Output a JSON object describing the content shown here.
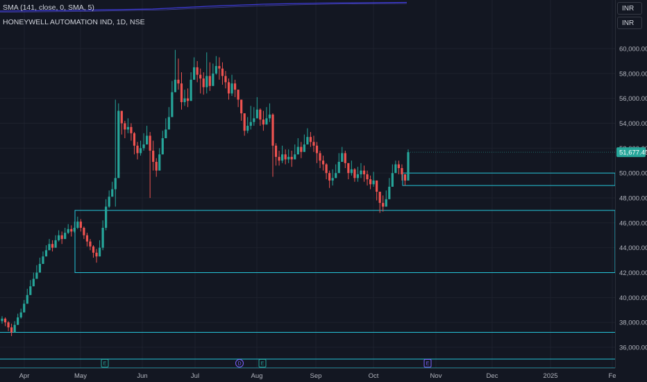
{
  "header": {
    "indicator_label": "SMA (141, close, 0, SMA, 5)",
    "symbol_title": "HONEYWELL AUTOMATION IND, 1D, NSE",
    "currency_top": "INR",
    "currency_bottom": "INR"
  },
  "chart_data": {
    "type": "candlestick",
    "x_labels": [
      "Apr",
      "May",
      "Jun",
      "Jul",
      "Aug",
      "Sep",
      "Oct",
      "Nov",
      "Dec",
      "2025",
      "Fe"
    ],
    "y_ticks": [
      "36,000.00",
      "38,000.00",
      "40,000.00",
      "42,000.00",
      "44,000.00",
      "46,000.00",
      "48,000.00",
      "50,000.00",
      "52,000.00",
      "54,000.00",
      "56,000.00",
      "58,000.00",
      "60,000.00"
    ],
    "ylim": [
      34000,
      61800
    ],
    "last_price": "51,677.45",
    "last_price_value": 51677.45,
    "events": [
      "E",
      "D",
      "E",
      "E"
    ],
    "horizontal_levels": [
      37200,
      42000,
      47000,
      49000,
      50000
    ],
    "colors": {
      "background": "#131722",
      "up": "#26a69a",
      "down": "#ef5350",
      "levels": "#26c6da",
      "sma": "#3d3ad6",
      "price_tag": "#26a69a"
    },
    "closes": [
      38300,
      38000,
      37600,
      37200,
      37800,
      38400,
      38800,
      39500,
      40200,
      40900,
      41500,
      42000,
      42700,
      43300,
      43800,
      44300,
      44000,
      44600,
      45000,
      44700,
      45200,
      45500,
      45300,
      45600,
      46100,
      45600,
      45000,
      44500,
      44100,
      43600,
      43300,
      44000,
      45600,
      47300,
      48100,
      48700,
      49600,
      55000,
      54000,
      53500,
      53700,
      53200,
      52200,
      51600,
      52000,
      52300,
      53000,
      51800,
      50900,
      50200,
      51500,
      52800,
      53500,
      54500,
      56500,
      57500,
      57200,
      55700,
      56000,
      55800,
      57500,
      58500,
      57900,
      57600,
      56900,
      57800,
      57000,
      58000,
      58600,
      58400,
      57800,
      57300,
      56400,
      57200,
      56700,
      55900,
      54800,
      53400,
      53800,
      54100,
      54400,
      55100,
      54300,
      53900,
      54400,
      54700,
      52200,
      51300,
      51000,
      51500,
      51100,
      51300,
      51100,
      51500,
      52100,
      51700,
      52300,
      52900,
      52500,
      52200,
      51600,
      51000,
      50700,
      50000,
      49400,
      49600,
      50000,
      50900,
      51600,
      50800,
      50000,
      50300,
      49600,
      49900,
      50200,
      49900,
      49500,
      49100,
      49400,
      48500,
      47600,
      47300,
      47900,
      48900,
      50000,
      50700,
      50400,
      49900,
      49400,
      51677.45
    ],
    "ranges": [
      [
        38500,
        37900
      ],
      [
        38400,
        37700
      ],
      [
        38100,
        37300
      ],
      [
        37900,
        36900
      ],
      [
        38100,
        37400
      ],
      [
        38700,
        37900
      ],
      [
        39100,
        38300
      ],
      [
        39800,
        38900
      ],
      [
        40700,
        39700
      ],
      [
        41400,
        40400
      ],
      [
        42000,
        41100
      ],
      [
        42600,
        41500
      ],
      [
        43200,
        42100
      ],
      [
        43700,
        42800
      ],
      [
        44200,
        43300
      ],
      [
        44700,
        43900
      ],
      [
        44600,
        43700
      ],
      [
        45000,
        44200
      ],
      [
        45400,
        44500
      ],
      [
        45300,
        44300
      ],
      [
        45600,
        44800
      ],
      [
        45900,
        45100
      ],
      [
        45800,
        44900
      ],
      [
        46100,
        45200
      ],
      [
        46500,
        45500
      ],
      [
        46300,
        45300
      ],
      [
        45700,
        44700
      ],
      [
        45200,
        44100
      ],
      [
        44700,
        43800
      ],
      [
        44200,
        43200
      ],
      [
        43900,
        42800
      ],
      [
        44600,
        43300
      ],
      [
        46200,
        43800
      ],
      [
        47900,
        45400
      ],
      [
        48600,
        47200
      ],
      [
        49300,
        48200
      ],
      [
        55900,
        47300
      ],
      [
        55600,
        53600
      ],
      [
        54700,
        53100
      ],
      [
        54200,
        52800
      ],
      [
        54400,
        53200
      ],
      [
        54000,
        52600
      ],
      [
        53300,
        51500
      ],
      [
        52500,
        51100
      ],
      [
        52600,
        51400
      ],
      [
        53200,
        51800
      ],
      [
        53800,
        52500
      ],
      [
        53300,
        48000
      ],
      [
        52600,
        50200
      ],
      [
        51200,
        49700
      ],
      [
        52000,
        50600
      ],
      [
        53400,
        51900
      ],
      [
        54400,
        52800
      ],
      [
        55300,
        53800
      ],
      [
        57400,
        54900
      ],
      [
        59900,
        56800
      ],
      [
        59200,
        56700
      ],
      [
        58100,
        55100
      ],
      [
        56700,
        55400
      ],
      [
        56800,
        55300
      ],
      [
        58100,
        56400
      ],
      [
        59300,
        57500
      ],
      [
        59000,
        57300
      ],
      [
        58400,
        56400
      ],
      [
        58100,
        56300
      ],
      [
        59700,
        56400
      ],
      [
        58900,
        56600
      ],
      [
        58800,
        57100
      ],
      [
        59400,
        57900
      ],
      [
        59300,
        57500
      ],
      [
        58900,
        57100
      ],
      [
        58200,
        56800
      ],
      [
        57600,
        55900
      ],
      [
        57900,
        56200
      ],
      [
        57500,
        56100
      ],
      [
        56600,
        55300
      ],
      [
        55800,
        54200
      ],
      [
        54600,
        53000
      ],
      [
        54500,
        53200
      ],
      [
        55400,
        53500
      ],
      [
        55300,
        53800
      ],
      [
        56100,
        54500
      ],
      [
        55200,
        53800
      ],
      [
        55000,
        53400
      ],
      [
        55300,
        53900
      ],
      [
        55600,
        54100
      ],
      [
        54800,
        49700
      ],
      [
        52400,
        50600
      ],
      [
        51800,
        50600
      ],
      [
        52200,
        50800
      ],
      [
        51900,
        50700
      ],
      [
        51900,
        50800
      ],
      [
        51800,
        50500
      ],
      [
        52300,
        51100
      ],
      [
        52800,
        51500
      ],
      [
        52500,
        51200
      ],
      [
        53100,
        51700
      ],
      [
        53600,
        52300
      ],
      [
        53300,
        52100
      ],
      [
        53000,
        51700
      ],
      [
        52500,
        50800
      ],
      [
        51800,
        50400
      ],
      [
        51400,
        50200
      ],
      [
        50800,
        49500
      ],
      [
        50200,
        48800
      ],
      [
        50300,
        49000
      ],
      [
        50700,
        49600
      ],
      [
        51600,
        50300
      ],
      [
        52100,
        51100
      ],
      [
        51800,
        50400
      ],
      [
        50800,
        49500
      ],
      [
        51000,
        49800
      ],
      [
        50400,
        49300
      ],
      [
        50500,
        49300
      ],
      [
        50800,
        49600
      ],
      [
        50600,
        49300
      ],
      [
        50200,
        49000
      ],
      [
        49800,
        48700
      ],
      [
        50100,
        48900
      ],
      [
        49300,
        47800
      ],
      [
        48400,
        46800
      ],
      [
        48200,
        46900
      ],
      [
        48600,
        47300
      ],
      [
        49600,
        48400
      ],
      [
        50700,
        49500
      ],
      [
        51000,
        50000
      ],
      [
        51000,
        49900
      ],
      [
        50700,
        49400
      ],
      [
        49900,
        49000
      ],
      [
        51900,
        49400
      ]
    ]
  }
}
